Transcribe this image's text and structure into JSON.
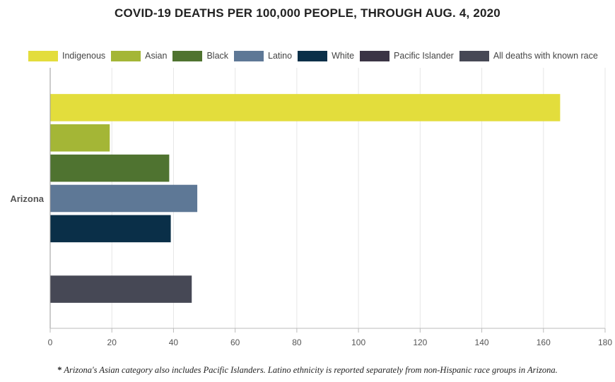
{
  "title": "COVID-19 DEATHS PER 100,000 PEOPLE, THROUGH AUG. 4, 2020",
  "footnote": "Arizona's Asian category also includes Pacific Islanders. Latino ethnicity is reported separately from non-Hispanic race groups in Arizona.",
  "footnote_marker": "*",
  "chart_data": {
    "type": "bar",
    "orientation": "horizontal",
    "title": "COVID-19 DEATHS PER 100,000 PEOPLE, THROUGH AUG. 4, 2020",
    "categories": [
      "Arizona"
    ],
    "xlim": [
      0,
      180
    ],
    "xticks": [
      0,
      20,
      40,
      60,
      80,
      100,
      120,
      140,
      160,
      180
    ],
    "grid": true,
    "legend_position": "top",
    "series": [
      {
        "name": "Indigenous",
        "color": "#e3dd3c",
        "values": [
          165.3
        ]
      },
      {
        "name": "Asian",
        "color": "#a4b636",
        "values": [
          19.2
        ]
      },
      {
        "name": "Black",
        "color": "#4f7330",
        "values": [
          38.5
        ]
      },
      {
        "name": "Latino",
        "color": "#5e7896",
        "values": [
          47.6
        ]
      },
      {
        "name": "White",
        "color": "#0a2f48",
        "values": [
          39.0
        ]
      },
      {
        "name": "Pacific Islander",
        "color": "#3b3445",
        "values": [
          null
        ]
      },
      {
        "name": "All deaths with known race",
        "color": "#464855",
        "values": [
          45.8
        ]
      }
    ]
  }
}
